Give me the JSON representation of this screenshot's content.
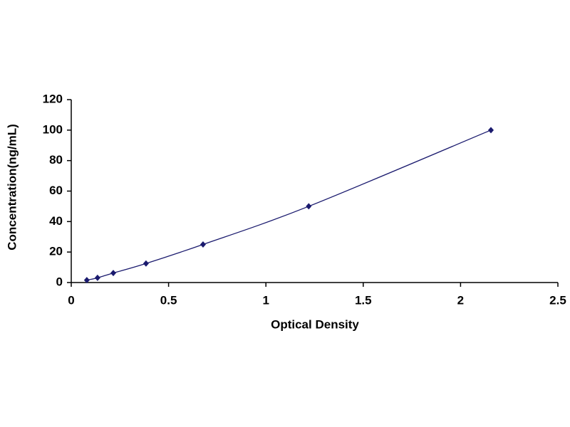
{
  "chart_data": {
    "type": "scatter",
    "line": true,
    "x_label": "Optical Density",
    "y_label": "Concentration(ng/mL)",
    "x": [
      0.08,
      0.135,
      0.216,
      0.384,
      0.677,
      1.22,
      2.156
    ],
    "values": [
      1.56,
      3.12,
      6.25,
      12.5,
      25,
      50,
      100
    ],
    "color": "#1a1a6e",
    "xlim": [
      0,
      2.5
    ],
    "xticks": [
      0,
      0.5,
      1,
      1.5,
      2,
      2.5
    ],
    "ylim": [
      0,
      120
    ],
    "yticks": [
      0,
      20,
      40,
      60,
      80,
      100,
      120
    ],
    "grid": false
  }
}
